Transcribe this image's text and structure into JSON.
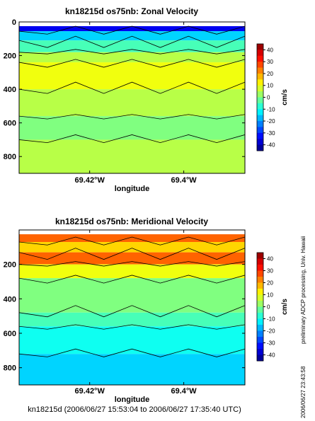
{
  "chart_data": [
    {
      "type": "heatmap",
      "title": "kn18215d os75nb: Zonal Velocity",
      "xlabel": "longitude",
      "ylabel": "",
      "x_ticks": [
        "69.42°W",
        "69.4°W"
      ],
      "x_tick_values": [
        -69.42,
        -69.4
      ],
      "xlim": [
        -69.435,
        -69.387
      ],
      "y_ticks": [
        0,
        200,
        400,
        600,
        800
      ],
      "ylim": [
        0,
        900
      ],
      "y_reversed": true,
      "colorbar": {
        "label": "cm/s",
        "range": [
          -45,
          45
        ],
        "ticks": [
          40,
          30,
          20,
          10,
          0,
          -10,
          -20,
          -30,
          -40
        ]
      },
      "color_bands": [
        {
          "depth": [
            25,
            55
          ],
          "value": -35
        },
        {
          "depth": [
            55,
            110
          ],
          "value": -15
        },
        {
          "depth": [
            110,
            180
          ],
          "value": -5
        },
        {
          "depth": [
            180,
            240
          ],
          "value": 5
        },
        {
          "depth": [
            240,
            400
          ],
          "value": 10
        },
        {
          "depth": [
            400,
            560
          ],
          "value": 5
        },
        {
          "depth": [
            560,
            700
          ],
          "value": 0
        },
        {
          "depth": [
            700,
            900
          ],
          "value": 5
        }
      ]
    },
    {
      "type": "heatmap",
      "title": "kn18215d os75nb: Meridional Velocity",
      "xlabel": "longitude",
      "ylabel": "",
      "x_ticks": [
        "69.42°W",
        "69.4°W"
      ],
      "x_tick_values": [
        -69.42,
        -69.4
      ],
      "xlim": [
        -69.435,
        -69.387
      ],
      "y_ticks": [
        200,
        400,
        600,
        800
      ],
      "ylim": [
        0,
        900
      ],
      "y_reversed": true,
      "colorbar": {
        "label": "cm/s",
        "range": [
          -45,
          45
        ],
        "ticks": [
          40,
          30,
          20,
          10,
          0,
          -10,
          -20,
          -30,
          -40
        ]
      },
      "color_bands": [
        {
          "depth": [
            25,
            70
          ],
          "value": 25
        },
        {
          "depth": [
            70,
            130
          ],
          "value": 15
        },
        {
          "depth": [
            130,
            200
          ],
          "value": 25
        },
        {
          "depth": [
            200,
            280
          ],
          "value": 10
        },
        {
          "depth": [
            280,
            480
          ],
          "value": 0
        },
        {
          "depth": [
            480,
            560
          ],
          "value": -5
        },
        {
          "depth": [
            560,
            720
          ],
          "value": -10
        },
        {
          "depth": [
            720,
            900
          ],
          "value": -15
        }
      ]
    }
  ],
  "caption": "kn18215d (2006/06/27 15:53:04 to 2006/06/27 17:35:40 UTC)",
  "side_note_processing": "preliminary ADCP processing,   Univ. Hawaii",
  "side_note_date": "2006/06/27 23:43:58"
}
